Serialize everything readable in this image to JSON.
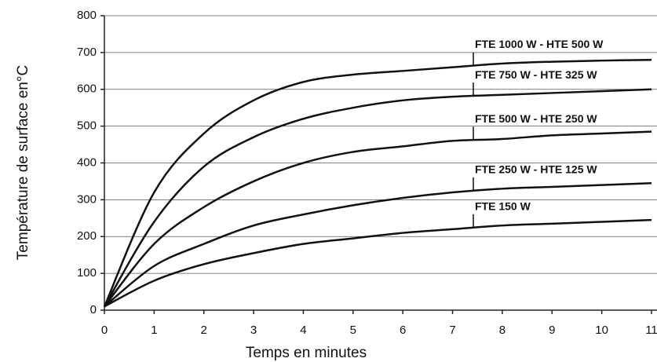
{
  "chart_data": {
    "type": "line",
    "xlabel": "Temps en minutes",
    "ylabel": "Température de surface en°C",
    "x": [
      0,
      1,
      2,
      3,
      4,
      5,
      6,
      7,
      8,
      9,
      10,
      11
    ],
    "series": [
      {
        "name": "FTE 1000 W - HTE 500 W",
        "color": "#111111",
        "values": [
          10,
          320,
          480,
          570,
          620,
          640,
          650,
          660,
          670,
          675,
          678,
          680
        ]
      },
      {
        "name": "FTE 750 W - HTE 325 W",
        "color": "#111111",
        "values": [
          10,
          240,
          390,
          470,
          520,
          550,
          570,
          580,
          585,
          590,
          595,
          600
        ]
      },
      {
        "name": "FTE 500 W - HTE 250 W",
        "color": "#111111",
        "values": [
          10,
          180,
          280,
          350,
          400,
          430,
          445,
          460,
          465,
          475,
          480,
          485
        ]
      },
      {
        "name": "FTE 250 W - HTE 125 W",
        "color": "#111111",
        "values": [
          10,
          120,
          180,
          230,
          260,
          285,
          305,
          320,
          330,
          335,
          340,
          345
        ]
      },
      {
        "name": "FTE 150 W",
        "color": "#111111",
        "values": [
          10,
          80,
          125,
          155,
          180,
          195,
          210,
          220,
          230,
          235,
          240,
          245
        ]
      }
    ],
    "xlim": [
      0,
      11
    ],
    "xticks": [
      0,
      1,
      2,
      3,
      4,
      5,
      6,
      7,
      8,
      9,
      10,
      11
    ],
    "ylim": [
      0,
      800
    ],
    "yticks": [
      0,
      100,
      200,
      300,
      400,
      500,
      600,
      700,
      800
    ],
    "grid": true
  }
}
